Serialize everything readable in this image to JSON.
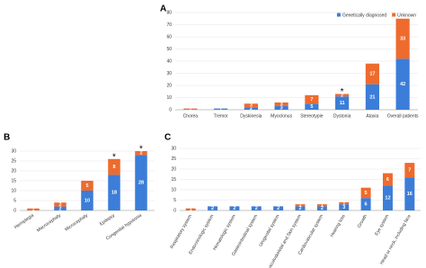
{
  "chart_data": [
    {
      "type": "bar",
      "title": "A",
      "stacked": true,
      "legend": "top-right",
      "categories": [
        "Chorea",
        "Tremor",
        "Dyskinesia",
        "Myoclonus",
        "Stereotypie",
        "Dystonia",
        "Ataxia",
        "Overall patients"
      ],
      "series": [
        {
          "name": "Genetically diagnosed",
          "color": "#3b7dd8",
          "values": [
            0,
            1,
            2,
            3,
            5,
            11,
            21,
            42
          ]
        },
        {
          "name": "Unknown",
          "color": "#ee6b2d",
          "values": [
            1,
            0,
            3,
            3,
            7,
            2,
            17,
            33
          ]
        }
      ],
      "annotations": [
        {
          "text": "*",
          "category": "Dystonia"
        }
      ],
      "ylim": [
        0,
        80
      ],
      "yticks": [
        0,
        10,
        20,
        30,
        40,
        50,
        60,
        70,
        80
      ],
      "grid": true
    },
    {
      "type": "bar",
      "title": "B",
      "stacked": true,
      "categories": [
        "Hemiplegia",
        "Macrocephaly",
        "Microcephaly",
        "Epilepsy",
        "Congenital hypotonia"
      ],
      "series": [
        {
          "color": "#3b7dd8",
          "values": [
            0,
            2,
            10,
            18,
            28
          ]
        },
        {
          "color": "#ee6b2d",
          "values": [
            1,
            2,
            5,
            8,
            2
          ]
        }
      ],
      "annotations": [
        {
          "text": "*",
          "category": "Epilepsy"
        },
        {
          "text": "*",
          "category": "Congenital hypotonia"
        }
      ],
      "ylim": [
        0,
        30
      ],
      "yticks": [
        0,
        5,
        10,
        15,
        20,
        25,
        30
      ],
      "grid": true
    },
    {
      "type": "bar",
      "title": "C",
      "stacked": true,
      "categories": [
        "Respiratory system",
        "Endocrinologic system",
        "Hematologic system",
        "Gastrointestinal system",
        "Urogenital system",
        "Musculoskeletal and Skin system",
        "Cardiovascular system",
        "Hearing loss",
        "Growth",
        "Eye system",
        "Head or neck, including face"
      ],
      "series": [
        {
          "color": "#3b7dd8",
          "values": [
            0,
            2,
            2,
            2,
            2,
            2,
            2,
            3,
            6,
            12,
            16
          ]
        },
        {
          "color": "#ee6b2d",
          "values": [
            1,
            0,
            0,
            0,
            0,
            1,
            1,
            1,
            5,
            6,
            7
          ]
        }
      ],
      "ylim": [
        0,
        30
      ],
      "yticks": [
        0,
        5,
        10,
        15,
        20,
        25,
        30
      ],
      "grid": true
    }
  ]
}
